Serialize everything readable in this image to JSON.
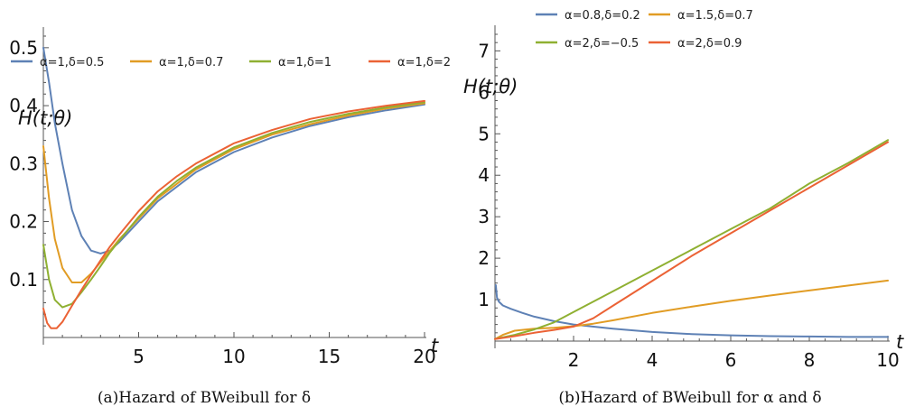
{
  "chart_data": [
    {
      "type": "line",
      "ylabel": "H(t;θ)",
      "xlabel": "t",
      "caption": "(a)Hazard of BWeibull for δ",
      "xlim": [
        0,
        20
      ],
      "ylim": [
        0,
        0.52
      ],
      "xticks": [
        5,
        10,
        15,
        20
      ],
      "yticks": [
        0.1,
        0.2,
        0.3,
        0.4,
        0.5
      ],
      "legend_position": "top",
      "series": [
        {
          "name": "α=1,δ=0.5",
          "color": "#5e81b5",
          "x": [
            0,
            0.3,
            0.6,
            1,
            1.5,
            2,
            2.5,
            3,
            3.5,
            4,
            5,
            6,
            7,
            8,
            10,
            12,
            14,
            16,
            18,
            20
          ],
          "y": [
            0.5,
            0.44,
            0.37,
            0.3,
            0.22,
            0.175,
            0.15,
            0.145,
            0.15,
            0.165,
            0.2,
            0.235,
            0.26,
            0.285,
            0.32,
            0.345,
            0.365,
            0.38,
            0.392,
            0.402
          ]
        },
        {
          "name": "α=1,δ=0.7",
          "color": "#e19c24",
          "x": [
            0,
            0.3,
            0.6,
            1,
            1.5,
            2,
            2.5,
            3,
            3.5,
            4,
            5,
            6,
            7,
            8,
            10,
            12,
            14,
            16,
            18,
            20
          ],
          "y": [
            0.33,
            0.24,
            0.17,
            0.12,
            0.095,
            0.095,
            0.11,
            0.13,
            0.15,
            0.17,
            0.205,
            0.24,
            0.265,
            0.29,
            0.325,
            0.35,
            0.368,
            0.383,
            0.395,
            0.404
          ]
        },
        {
          "name": "α=1,δ=1",
          "color": "#8fb032",
          "x": [
            0,
            0.3,
            0.6,
            1,
            1.5,
            2,
            2.5,
            3,
            3.5,
            4,
            5,
            6,
            7,
            8,
            10,
            12,
            14,
            16,
            18,
            20
          ],
          "y": [
            0.16,
            0.1,
            0.065,
            0.052,
            0.058,
            0.078,
            0.1,
            0.123,
            0.147,
            0.168,
            0.208,
            0.243,
            0.27,
            0.293,
            0.328,
            0.353,
            0.372,
            0.386,
            0.397,
            0.406
          ]
        },
        {
          "name": "α=1,δ=2",
          "color": "#eb6235",
          "x": [
            0,
            0.2,
            0.4,
            0.7,
            1,
            1.5,
            2,
            2.5,
            3,
            3.5,
            4,
            5,
            6,
            7,
            8,
            10,
            12,
            14,
            16,
            18,
            20
          ],
          "y": [
            0.05,
            0.025,
            0.016,
            0.016,
            0.027,
            0.055,
            0.082,
            0.108,
            0.133,
            0.157,
            0.178,
            0.218,
            0.252,
            0.278,
            0.3,
            0.335,
            0.358,
            0.377,
            0.39,
            0.4,
            0.408
          ]
        }
      ]
    },
    {
      "type": "line",
      "ylabel": "H(t;θ)",
      "xlabel": "t",
      "caption": "(b)Hazard of BWeibull for α and δ",
      "xlim": [
        0,
        10
      ],
      "ylim": [
        0,
        7.4
      ],
      "xticks": [
        2,
        4,
        6,
        8,
        10
      ],
      "yticks": [
        1,
        2,
        3,
        4,
        5,
        6,
        7
      ],
      "legend_position": "top-right",
      "series": [
        {
          "name": "α=0.8,δ=0.2",
          "color": "#5e81b5",
          "x": [
            0.02,
            0.05,
            0.1,
            0.2,
            0.4,
            0.7,
            1,
            1.5,
            2,
            3,
            4,
            5,
            6,
            7,
            8,
            9,
            10
          ],
          "y": [
            1.35,
            1.05,
            0.95,
            0.86,
            0.78,
            0.68,
            0.59,
            0.48,
            0.4,
            0.3,
            0.22,
            0.17,
            0.14,
            0.12,
            0.11,
            0.1,
            0.1
          ]
        },
        {
          "name": "α=1.5,δ=0.7",
          "color": "#e19c24",
          "x": [
            0,
            0.2,
            0.5,
            1,
            1.5,
            2,
            2.5,
            3,
            4,
            5,
            6,
            7,
            8,
            9,
            10
          ],
          "y": [
            0.05,
            0.15,
            0.25,
            0.3,
            0.32,
            0.36,
            0.42,
            0.5,
            0.68,
            0.83,
            0.97,
            1.1,
            1.22,
            1.34,
            1.46
          ]
        },
        {
          "name": "α=2,δ=−0.5",
          "color": "#8fb032",
          "x": [
            0,
            0.25,
            0.5,
            1,
            1.5,
            2,
            3,
            4,
            5,
            6,
            7,
            8,
            9,
            10
          ],
          "y": [
            0.05,
            0.1,
            0.15,
            0.28,
            0.45,
            0.7,
            1.2,
            1.7,
            2.2,
            2.7,
            3.2,
            3.8,
            4.3,
            4.85
          ]
        },
        {
          "name": "α=2,δ=0.9",
          "color": "#eb6235",
          "x": [
            0,
            0.5,
            1,
            1.5,
            2,
            2.5,
            3,
            4,
            5,
            6,
            7,
            8,
            9,
            10
          ],
          "y": [
            0.05,
            0.12,
            0.2,
            0.27,
            0.35,
            0.55,
            0.85,
            1.45,
            2.05,
            2.6,
            3.15,
            3.7,
            4.25,
            4.8
          ]
        }
      ]
    }
  ]
}
